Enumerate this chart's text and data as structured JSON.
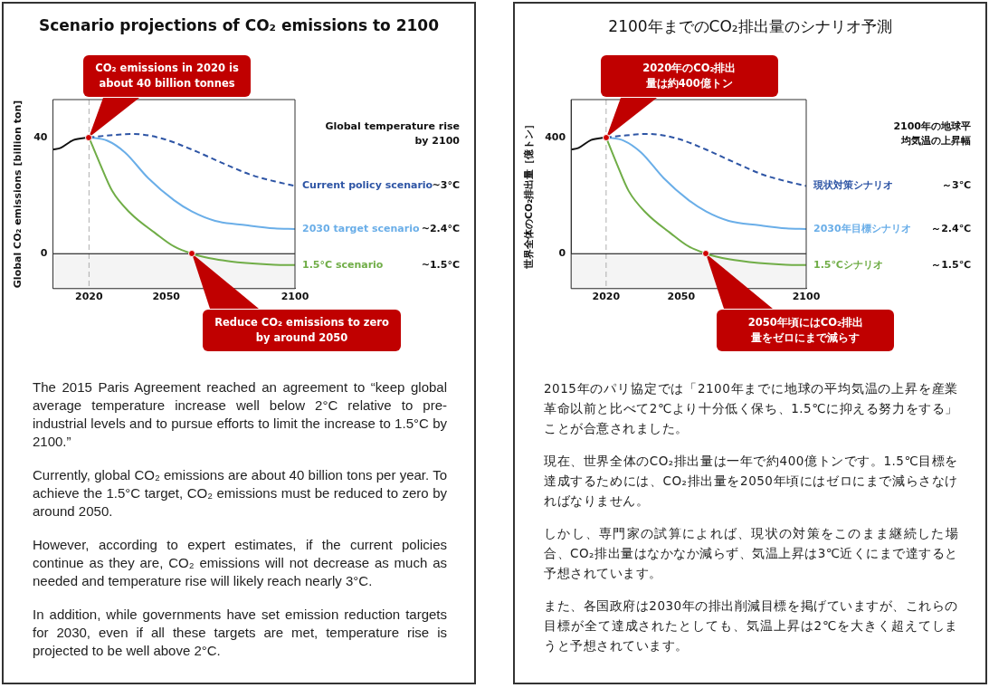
{
  "chart_data": [
    {
      "type": "line",
      "title": "Scenario projections of CO₂ emissions to 2100",
      "ylabel": "Global CO₂ emissions [billion ton]",
      "legend_title": "Global temperature rise\nby 2100",
      "legend": "right",
      "marker": "none",
      "xlim": [
        2006,
        2100
      ],
      "xticks": [
        2020,
        2050,
        2100
      ],
      "ylim": [
        -12,
        53
      ],
      "yticks": [
        0,
        40
      ],
      "series": [
        {
          "color": "#111111",
          "x": [
            2006,
            2009,
            2014,
            2020
          ],
          "values": [
            35.8,
            36.4,
            39.1,
            40
          ]
        },
        {
          "name": "Current policy scenario",
          "color": "#2e55a5",
          "line_style": "dashed",
          "x": [
            2020,
            2028,
            2037,
            2048,
            2060,
            2071,
            2083,
            2092,
            2100
          ],
          "values": [
            40,
            40.7,
            41.2,
            39.7,
            35.8,
            31.5,
            27.1,
            24.9,
            23.3
          ]
        },
        {
          "name": "2030 target scenario",
          "color": "#6aaee8",
          "x": [
            2020,
            2027,
            2034,
            2043,
            2053,
            2060,
            2069,
            2081,
            2092,
            2100
          ],
          "values": [
            40,
            38.9,
            34.8,
            26,
            18.4,
            14.5,
            11.3,
            9.8,
            8.7,
            8.5
          ]
        },
        {
          "name": "1.5°C scenario",
          "color": "#70ad47",
          "x": [
            2020,
            2024,
            2029,
            2036,
            2046,
            2053,
            2060,
            2069,
            2081,
            2092,
            2100
          ],
          "values": [
            40,
            31.5,
            21.6,
            14,
            6.9,
            2.5,
            0,
            -1.9,
            -3.2,
            -3.8,
            -3.9
          ]
        }
      ],
      "ref_lines": [
        {
          "axis": "x",
          "value": 2020,
          "color": "#999999",
          "line_style": "dashed"
        },
        {
          "axis": "y",
          "value": 0,
          "color": "#000000",
          "line_style": "solid"
        }
      ],
      "bands": [
        {
          "axis": "y",
          "from": -12,
          "to": 0,
          "color": "#f4f4f4"
        }
      ],
      "annotations": [
        "CO₂ emissions in 2020 is\nabout 40 billion tonnes",
        "Reduce CO₂ emissions to zero\nby around 2050",
        "~3°C",
        "~2.4°C",
        "~1.5°C",
        "The 2015 Paris Agreement reached an agreement to “keep global average temperature increase well below 2°C relative to pre-industrial levels and to pursue efforts to limit the increase to 1.5°C by 2100.”",
        "Currently, global CO₂ emissions are about 40 billion tons per year. To achieve the 1.5°C target, CO₂ emissions must be reduced to zero by around 2050.",
        "However, according to expert estimates, if the current policies continue as they are, CO₂ emissions will not decrease as much as needed and temperature rise will likely reach nearly 3°C.",
        "In addition, while governments have set emission reduction targets for 2030, even if all these targets are met, temperature rise is projected to be well above 2°C."
      ]
    },
    {
      "type": "line",
      "title": "2100年までのCO₂排出量のシナリオ予測",
      "ylabel": "世界全体のCO₂排出量［億トン］",
      "legend_title": "2100年の地球平均気温の上昇幅",
      "legend": "right",
      "marker": "none",
      "xlim": [
        2006,
        2100
      ],
      "xticks": [
        2020,
        2050,
        2100
      ],
      "ylim": [
        -120,
        530
      ],
      "yticks": [
        0,
        400
      ],
      "series": [
        {
          "color": "#111111",
          "x": [
            2006,
            2009,
            2014,
            2020
          ],
          "values": [
            358,
            364,
            391,
            400
          ]
        },
        {
          "name": "現状対策シナリオ",
          "color": "#2e55a5",
          "line_style": "dashed",
          "x": [
            2020,
            2028,
            2037,
            2048,
            2060,
            2071,
            2083,
            2092,
            2100
          ],
          "values": [
            400,
            407,
            412,
            397,
            358,
            315,
            271,
            249,
            233
          ]
        },
        {
          "name": "2030年目標シナリオ",
          "color": "#6aaee8",
          "x": [
            2020,
            2027,
            2034,
            2043,
            2053,
            2060,
            2069,
            2081,
            2092,
            2100
          ],
          "values": [
            400,
            389,
            348,
            260,
            184,
            145,
            113,
            98,
            87,
            85
          ]
        },
        {
          "name": "1.5℃シナリオ",
          "color": "#70ad47",
          "x": [
            2020,
            2024,
            2029,
            2036,
            2046,
            2053,
            2060,
            2069,
            2081,
            2092,
            2100
          ],
          "values": [
            400,
            315,
            216,
            140,
            69,
            25,
            0,
            -19,
            -32,
            -38,
            -39
          ]
        }
      ],
      "ref_lines": [
        {
          "axis": "x",
          "value": 2020,
          "color": "#999999",
          "line_style": "dashed"
        },
        {
          "axis": "y",
          "value": 0,
          "color": "#000000",
          "line_style": "solid"
        }
      ],
      "bands": [
        {
          "axis": "y",
          "from": -120,
          "to": 0,
          "color": "#f4f4f4"
        }
      ],
      "annotations": [
        "2020年のCO₂排出量は約400億トン",
        "2050年頃にはCO₂排出量をゼロにまで減らす",
        "～3℃",
        "～2.4℃",
        "～1.5℃",
        "2015年のパリ協定では「2100年までに地球の平均気温の上昇を産業革命以前と比べて2℃より十分低く保ち、1.5℃に抑える努力をする」ことが合意されました。",
        "現在、世界全体のCO₂排出量は一年で約400億トンです。1.5℃目標を達成するためには、CO₂排出量を2050年頃にはゼロにまで減らさなければなりません。",
        "しかし、専門家の試算によれば、現状の対策をこのまま継続した場合、CO₂排出量はなかなか減らず、気温上昇は3℃近くにまで達すると予想されています。",
        "また、各国政府は2030年の排出削減目標を掲げていますが、これらの目標が全て達成されたとしても、気温上昇は2℃を大きく超えてしまうと予想されています。"
      ]
    }
  ]
}
